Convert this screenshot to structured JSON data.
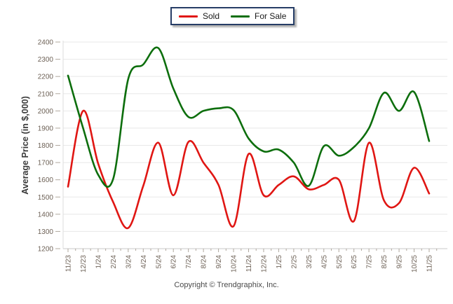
{
  "footer": {
    "copyright": "Copyright © Trendgraphix, Inc."
  },
  "chart_data": {
    "type": "line",
    "title": "",
    "ylabel": "Average Price (in $,000)",
    "xlabel": "",
    "ylim": [
      1200,
      2400
    ],
    "ytick_step": 100,
    "yticks": [
      2400,
      2300,
      2200,
      2100,
      2000,
      1900,
      1800,
      1700,
      1600,
      1500,
      1400,
      1300,
      1200
    ],
    "grid": "horizontal",
    "legend_position": "top-center",
    "categories": [
      "11/23",
      "12/23",
      "1/24",
      "2/24",
      "3/24",
      "4/24",
      "5/24",
      "6/24",
      "7/24",
      "8/24",
      "9/24",
      "10/24",
      "11/24",
      "12/24",
      "1/25",
      "2/25",
      "3/25",
      "4/25",
      "5/25",
      "6/25",
      "7/25",
      "8/25",
      "9/25",
      "10/25",
      "11/25"
    ],
    "series": [
      {
        "name": "Sold",
        "color": "#e01613",
        "values": [
          1560,
          2000,
          1695,
          1470,
          1320,
          1565,
          1815,
          1510,
          1820,
          1700,
          1570,
          1330,
          1750,
          1510,
          1570,
          1620,
          1545,
          1570,
          1600,
          1360,
          1815,
          1480,
          1465,
          1670,
          1520
        ]
      },
      {
        "name": "For Sale",
        "color": "#0d6e0d",
        "values": [
          2205,
          1900,
          1630,
          1605,
          2185,
          2270,
          2365,
          2130,
          1965,
          2000,
          2015,
          2005,
          1840,
          1765,
          1775,
          1700,
          1565,
          1795,
          1740,
          1790,
          1900,
          2105,
          2000,
          2110,
          1825
        ]
      }
    ],
    "colors": {
      "gridline": "#e8e8e8",
      "axis_line": "#c9c9c9",
      "tick": "#b0a89e",
      "tick_label": "#6d6156",
      "axis_title": "#3b3b3b",
      "legend_border": "#263d66"
    }
  }
}
